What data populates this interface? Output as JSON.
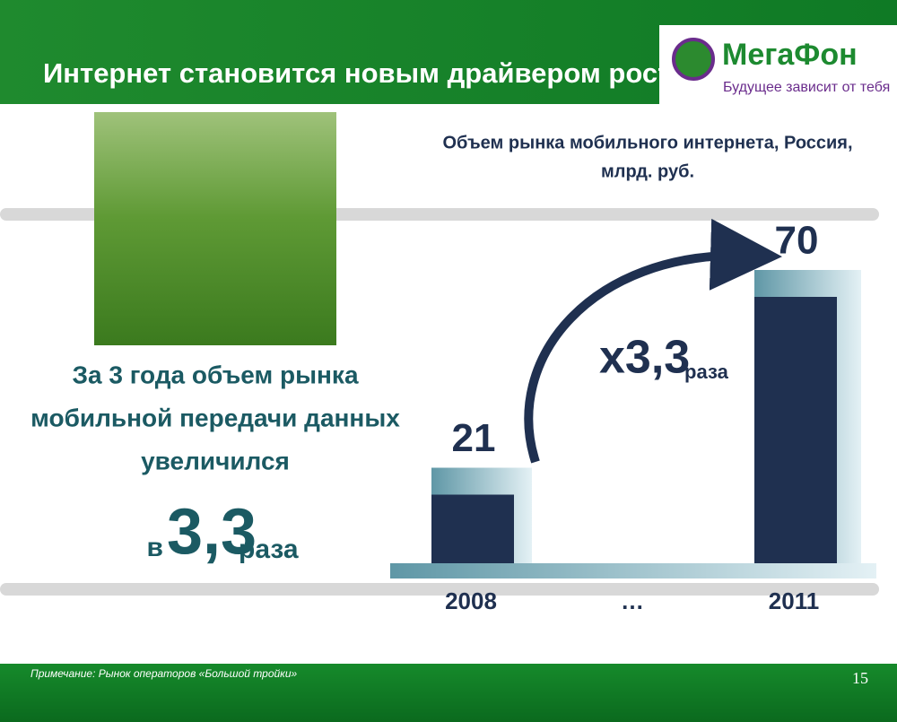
{
  "header": {
    "title": "Интернет становится новым драйвером роста рынка",
    "logo": "МегаФон",
    "tagline": "Будущее зависит от тебя"
  },
  "summary": {
    "text_lines": [
      "За 3 года объем рынка",
      "мобильной передачи данных",
      "увеличился"
    ],
    "prefix": "в",
    "number": "3,3",
    "suffix": "раза"
  },
  "chart_data": {
    "type": "bar",
    "title_lines": [
      "Объем рынка мобильного интернета, Россия,",
      "млрд. руб."
    ],
    "categories": [
      "2008",
      "…",
      "2011"
    ],
    "values": [
      21,
      null,
      70
    ],
    "color": "#1f3050",
    "annotation": {
      "text": "x3,3",
      "unit": "раза"
    }
  },
  "footer": {
    "note": "Примечание: Рынок операторов «Большой тройки»",
    "page": "15"
  }
}
